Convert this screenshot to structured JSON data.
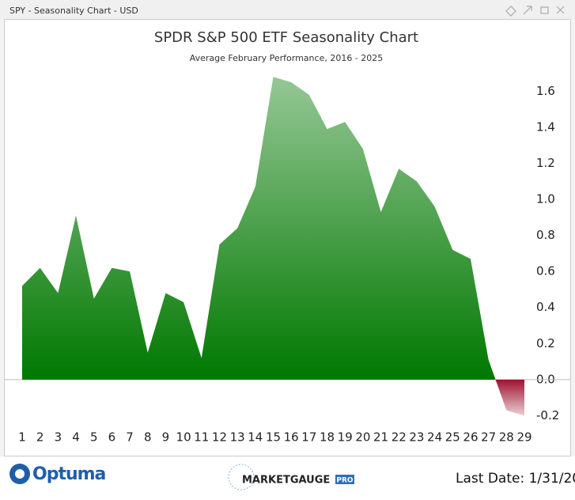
{
  "window": {
    "title": "SPY - Seasonality Chart - USD"
  },
  "chart_data": {
    "type": "area",
    "title": "SPDR S&P 500 ETF Seasonality Chart",
    "subtitle": "Average February Performance, 2016 - 2025",
    "categories": [
      "1",
      "2",
      "3",
      "4",
      "5",
      "6",
      "7",
      "8",
      "9",
      "10",
      "11",
      "12",
      "13",
      "14",
      "15",
      "16",
      "17",
      "18",
      "19",
      "20",
      "21",
      "22",
      "23",
      "24",
      "25",
      "26",
      "27",
      "28",
      "29"
    ],
    "values": [
      0.52,
      0.62,
      0.48,
      0.91,
      0.45,
      0.62,
      0.6,
      0.15,
      0.48,
      0.43,
      0.12,
      0.75,
      0.84,
      1.07,
      1.68,
      1.65,
      1.58,
      1.39,
      1.43,
      1.28,
      0.93,
      1.17,
      1.1,
      0.96,
      0.72,
      0.67,
      0.11,
      -0.17,
      -0.2
    ],
    "positive_color": "#007800",
    "negative_color": "#9e1230",
    "ylim": [
      -0.22,
      1.72
    ],
    "yticks": [
      -0.2,
      {
        "value": 0,
        "label": "0.0"
      },
      0.2,
      0.4,
      0.6,
      0.8,
      {
        "value": 1,
        "label": "1.0"
      },
      1.2,
      1.4,
      1.6
    ]
  },
  "footer": {
    "logo_left": "Optuma",
    "logo_center": "MARKETGAUGE",
    "logo_badge": "PRO",
    "last_date": "Last Date: 1/31/20"
  }
}
